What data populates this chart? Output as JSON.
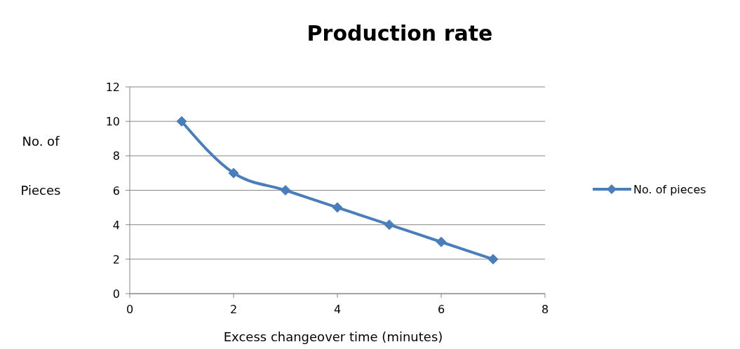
{
  "chart_data": {
    "type": "line",
    "title": "Production rate",
    "xlabel": "Excess changeover time (minutes)",
    "ylabel": "No. of Pieces",
    "x": [
      1,
      2,
      3,
      4,
      5,
      6,
      7
    ],
    "series": [
      {
        "name": "No. of pieces",
        "color": "#4a7ebb",
        "values": [
          10,
          7,
          6,
          5,
          4,
          3,
          2
        ]
      }
    ],
    "xlim": [
      0,
      8
    ],
    "xticks": [
      0,
      2,
      4,
      6,
      8
    ],
    "ylim": [
      0,
      12
    ],
    "yticks": [
      0,
      2,
      4,
      6,
      8,
      10,
      12
    ],
    "grid": "y",
    "legend": "right",
    "marker": "diamond",
    "line_style": "solid"
  }
}
